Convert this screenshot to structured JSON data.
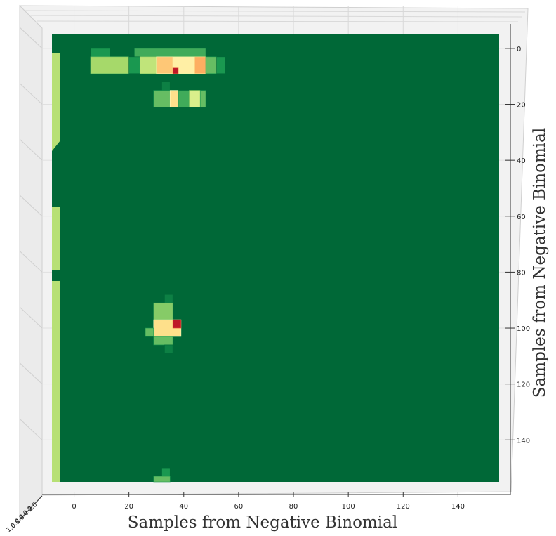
{
  "chart_data": {
    "type": "heatmap",
    "title": "",
    "xlabel": "Samples from Negative Binomial",
    "ylabel": "Samples from Negative Binomial",
    "colormap": "RdYlGn_r",
    "view": "3d-bar top-down",
    "xlim": [
      -5,
      155
    ],
    "ylim": [
      -5,
      155
    ],
    "zlim": [
      0,
      1
    ],
    "x_ticks": [
      "0",
      "20",
      "40",
      "60",
      "80",
      "100",
      "120",
      "140"
    ],
    "y_ticks": [
      "0",
      "20",
      "40",
      "60",
      "80",
      "100",
      "120",
      "140"
    ],
    "z_ticks": [
      "1.0",
      "0.8",
      "0.6",
      "0.4",
      "0.2",
      "0.0"
    ],
    "background_color": "#006837",
    "grid": true,
    "cells": [
      {
        "x": 6,
        "y": 0,
        "x2": 13,
        "y2": 3,
        "value": 0.1
      },
      {
        "x": 22,
        "y": 0,
        "x2": 48,
        "y2": 3,
        "value": 0.15
      },
      {
        "x": 6,
        "y": 3,
        "x2": 20,
        "y2": 9,
        "value": 0.3
      },
      {
        "x": 20,
        "y": 3,
        "x2": 24,
        "y2": 9,
        "value": 0.1
      },
      {
        "x": 24,
        "y": 3,
        "x2": 30,
        "y2": 9,
        "value": 0.35
      },
      {
        "x": 30,
        "y": 3,
        "x2": 36,
        "y2": 9,
        "value": 0.65
      },
      {
        "x": 36,
        "y": 3,
        "x2": 44,
        "y2": 9,
        "value": 0.55
      },
      {
        "x": 44,
        "y": 3,
        "x2": 48,
        "y2": 9,
        "value": 0.7
      },
      {
        "x": 48,
        "y": 3,
        "x2": 52,
        "y2": 9,
        "value": 0.2
      },
      {
        "x": 52,
        "y": 3,
        "x2": 55,
        "y2": 9,
        "value": 0.1
      },
      {
        "x": 36,
        "y": 7,
        "x2": 38,
        "y2": 9,
        "value": 0.95
      },
      {
        "x": 32,
        "y": 12,
        "x2": 35,
        "y2": 15,
        "value": 0.05
      },
      {
        "x": 29,
        "y": 15,
        "x2": 35,
        "y2": 21,
        "value": 0.2
      },
      {
        "x": 35,
        "y": 15,
        "x2": 38,
        "y2": 21,
        "value": 0.6
      },
      {
        "x": 38,
        "y": 15,
        "x2": 42,
        "y2": 21,
        "value": 0.15
      },
      {
        "x": 42,
        "y": 15,
        "x2": 46,
        "y2": 21,
        "value": 0.4
      },
      {
        "x": 46,
        "y": 15,
        "x2": 48,
        "y2": 21,
        "value": 0.2
      },
      {
        "x": 33,
        "y": 88,
        "x2": 36,
        "y2": 91,
        "value": 0.05
      },
      {
        "x": 29,
        "y": 91,
        "x2": 36,
        "y2": 97,
        "value": 0.25
      },
      {
        "x": 29,
        "y": 97,
        "x2": 39,
        "y2": 103,
        "value": 0.6
      },
      {
        "x": 36,
        "y": 97,
        "x2": 39,
        "y2": 100,
        "value": 0.95
      },
      {
        "x": 26,
        "y": 100,
        "x2": 29,
        "y2": 103,
        "value": 0.2
      },
      {
        "x": 29,
        "y": 103,
        "x2": 36,
        "y2": 106,
        "value": 0.2
      },
      {
        "x": 33,
        "y": 106,
        "x2": 36,
        "y2": 109,
        "value": 0.05
      },
      {
        "x": 32,
        "y": 150,
        "x2": 35,
        "y2": 153,
        "value": 0.1
      },
      {
        "x": 29,
        "y": 153,
        "x2": 35,
        "y2": 155,
        "value": 0.2
      }
    ]
  }
}
